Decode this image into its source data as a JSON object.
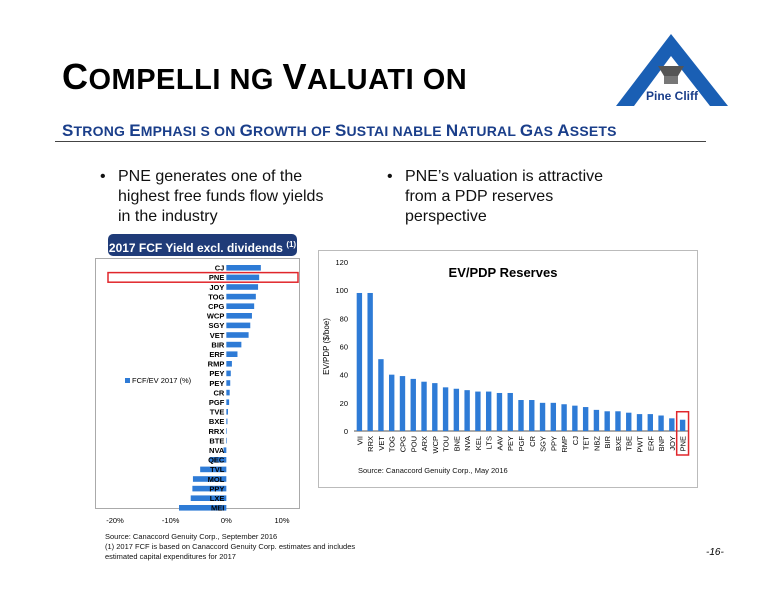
{
  "page": {
    "title_cap": "C",
    "title_rest1": "OMPELLI NG ",
    "title_cap2": "V",
    "title_rest2": "ALUATI ON",
    "subtitle": [
      {
        "big": "S",
        "small": "TRONG "
      },
      {
        "big": "E",
        "small": "MPHASI S ON "
      },
      {
        "big": "G",
        "small": "ROWTH OF "
      },
      {
        "big": "S",
        "small": "USTAI NABLE "
      },
      {
        "big": "N",
        "small": "ATURAL "
      },
      {
        "big": "G",
        "small": "AS "
      },
      {
        "big": "A",
        "small": "SSETS"
      }
    ],
    "logo_text": "Pine Cliff",
    "bullet_left": [
      "PNE generates one of the",
      "highest free funds flow yields",
      "in the industry"
    ],
    "bullet_right": [
      "PNE’s valuation is attractive",
      "from a PDP reserves",
      "perspective"
    ],
    "bullet_glyph": "•",
    "fcf_box_label": "2017 FCF Yield excl. dividends ",
    "fcf_box_note": "(1)",
    "source_left": [
      "Source: Canaccord Genuity Corp., September 2016",
      "(1) 2017 FCF is based on Canaccord Genuity Corp. estimates and includes",
      "estimated capital expenditures for 2017"
    ],
    "source_right": "Source: Canaccord Genuity Corp., May 2016",
    "page_number": "-16-",
    "colors": {
      "bar": "#2e7bd6",
      "highlight": "#e0262b",
      "title_blue": "#1a3e8a",
      "box": "#1f3b78"
    }
  },
  "chart_data": [
    {
      "type": "bar",
      "orientation": "horizontal",
      "title": "",
      "legend": "FCF/EV 2017 (%)",
      "legend_position": "left",
      "categories": [
        "CJ",
        "PNE",
        "JOY",
        "TOG",
        "CPG",
        "WCP",
        "SGY",
        "VET",
        "BIR",
        "ERF",
        "RMP",
        "PEY",
        "PEY",
        "CR",
        "PGF",
        "TVE",
        "BXE",
        "RRX",
        "BTE",
        "NVA",
        "QEC",
        "TVL",
        "MOL",
        "PPY",
        "LXE",
        "MEI"
      ],
      "values": [
        6.2,
        5.9,
        5.7,
        5.3,
        5.0,
        4.6,
        4.3,
        4.0,
        2.7,
        2.0,
        1.0,
        0.8,
        0.7,
        0.6,
        0.5,
        0.3,
        0.2,
        0.1,
        0.0,
        -0.5,
        -3.0,
        -4.7,
        -6.0,
        -6.1,
        -6.4,
        -8.5
      ],
      "highlight": "PNE",
      "xlim": [
        -20,
        10
      ],
      "xticks": [
        "-20%",
        "-10%",
        "0%",
        "10%"
      ],
      "xtick_values": [
        -20,
        -10,
        0,
        10
      ]
    },
    {
      "type": "bar",
      "title": "EV/PDP Reserves",
      "ylabel": "EV/PDP ($/boe)",
      "ylim": [
        0,
        120
      ],
      "yticks": [
        "0",
        "20",
        "40",
        "60",
        "80",
        "100",
        "120"
      ],
      "categories": [
        "VII",
        "RRX",
        "VET",
        "TOG",
        "CPG",
        "POU",
        "ARX",
        "WCP",
        "TOU",
        "BNE",
        "NVA",
        "KEL",
        "LTS",
        "AAV",
        "PEY",
        "PGF",
        "CR",
        "SGY",
        "PPY",
        "RMP",
        "CJ",
        "TET",
        "NBZ",
        "BIR",
        "BXE",
        "TBE",
        "PWT",
        "ERF",
        "BNP",
        "JOY",
        "PNE"
      ],
      "values": [
        98,
        98,
        51,
        40,
        39,
        37,
        35,
        34,
        31,
        30,
        29,
        28,
        28,
        27,
        27,
        22,
        22,
        20,
        20,
        19,
        18,
        17,
        15,
        14,
        14,
        13,
        12,
        12,
        11,
        9,
        8
      ],
      "highlight": "PNE",
      "grid": false
    }
  ]
}
